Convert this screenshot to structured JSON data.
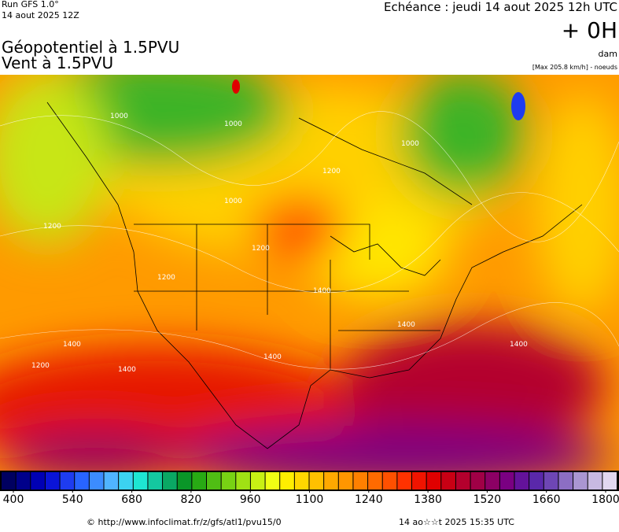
{
  "header": {
    "run": "Run GFS 1.0°",
    "date": "14 aout 2025 12Z",
    "title": "Géopotentiel à 1.5PVU",
    "subtitle": "Vent à 1.5PVU",
    "forecast": "Echéance : jeudi 14 aout 2025 12h UTC",
    "lead": "+ 0H",
    "unit": "dam",
    "max": "[Max 205.8 km/h] - noeuds"
  },
  "map": {
    "contour_labels": [
      "1000",
      "1000",
      "1000",
      "1000",
      "1200",
      "1200",
      "1200",
      "1200",
      "1400",
      "1400",
      "1400",
      "1400",
      "1400",
      "1200",
      "1400"
    ]
  },
  "colorbar": {
    "range": [
      400,
      1800
    ],
    "ticks": [
      400,
      540,
      680,
      820,
      960,
      1100,
      1240,
      1380,
      1520,
      1660,
      1800
    ],
    "colors": [
      "#000060",
      "#00008a",
      "#0000b4",
      "#0a14d8",
      "#1e3cf0",
      "#2864ff",
      "#3c8cff",
      "#50b4ff",
      "#3cd2f0",
      "#1ee6d2",
      "#14c8a0",
      "#0aa864",
      "#0a9628",
      "#28aa14",
      "#50be14",
      "#78d214",
      "#a0e114",
      "#c8f014",
      "#f0ff14",
      "#ffee00",
      "#ffd700",
      "#ffc000",
      "#ffa800",
      "#ff9600",
      "#ff8000",
      "#ff6a00",
      "#ff5000",
      "#ff3200",
      "#f01400",
      "#e00000",
      "#c80014",
      "#b4002d",
      "#a00046",
      "#8c0064",
      "#7a0082",
      "#64129b",
      "#5a28aa",
      "#6e46b4",
      "#8c6ec3",
      "#aa96d2",
      "#c8b9e1",
      "#e1d7f0"
    ]
  },
  "footer": {
    "source": "© http://www.infoclimat.fr/z/gfs/atl1/pvu15/0",
    "generated": "14 ao☆☆t 2025 15:35 UTC"
  }
}
